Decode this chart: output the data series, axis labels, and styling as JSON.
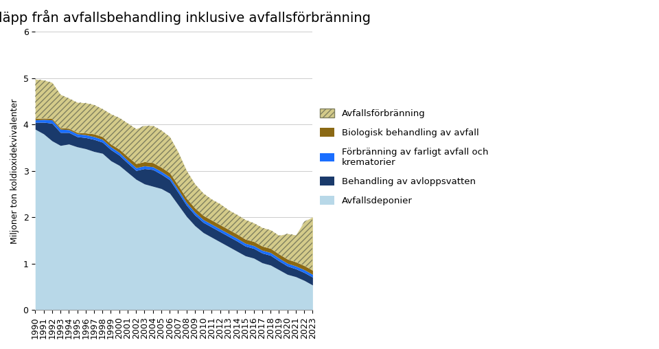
{
  "title": "Utsläpp från avfallsbehandling inklusive avfallsförbränning",
  "ylabel": "Miljoner ton koldioxidekvivalenter",
  "years": [
    1990,
    1991,
    1992,
    1993,
    1994,
    1995,
    1996,
    1997,
    1998,
    1999,
    2000,
    2001,
    2002,
    2003,
    2004,
    2005,
    2006,
    2007,
    2008,
    2009,
    2010,
    2011,
    2012,
    2013,
    2014,
    2015,
    2016,
    2017,
    2018,
    2019,
    2020,
    2021,
    2022,
    2023
  ],
  "avfallsdeponier": [
    3.9,
    3.8,
    3.65,
    3.55,
    3.58,
    3.52,
    3.48,
    3.42,
    3.38,
    3.22,
    3.12,
    2.97,
    2.82,
    2.72,
    2.67,
    2.62,
    2.52,
    2.27,
    2.02,
    1.82,
    1.67,
    1.57,
    1.47,
    1.37,
    1.27,
    1.17,
    1.12,
    1.02,
    0.97,
    0.87,
    0.77,
    0.72,
    0.64,
    0.54
  ],
  "behandling_avloppsvatten": [
    0.15,
    0.25,
    0.38,
    0.28,
    0.25,
    0.22,
    0.24,
    0.26,
    0.24,
    0.24,
    0.22,
    0.2,
    0.19,
    0.33,
    0.36,
    0.31,
    0.29,
    0.27,
    0.24,
    0.23,
    0.22,
    0.22,
    0.22,
    0.22,
    0.22,
    0.21,
    0.21,
    0.21,
    0.21,
    0.19,
    0.18,
    0.17,
    0.17,
    0.17
  ],
  "forbranning_farligt": [
    0.05,
    0.06,
    0.07,
    0.07,
    0.06,
    0.06,
    0.06,
    0.06,
    0.06,
    0.06,
    0.06,
    0.06,
    0.06,
    0.06,
    0.06,
    0.06,
    0.06,
    0.06,
    0.06,
    0.06,
    0.06,
    0.06,
    0.06,
    0.06,
    0.06,
    0.06,
    0.06,
    0.06,
    0.06,
    0.06,
    0.06,
    0.06,
    0.06,
    0.06
  ],
  "biologisk_behandling": [
    0.03,
    0.03,
    0.03,
    0.03,
    0.03,
    0.03,
    0.04,
    0.06,
    0.06,
    0.06,
    0.07,
    0.08,
    0.09,
    0.09,
    0.09,
    0.09,
    0.09,
    0.09,
    0.09,
    0.09,
    0.09,
    0.09,
    0.09,
    0.09,
    0.09,
    0.09,
    0.09,
    0.09,
    0.09,
    0.09,
    0.09,
    0.09,
    0.09,
    0.09
  ],
  "avfallsforbranning": [
    0.85,
    0.82,
    0.78,
    0.72,
    0.65,
    0.65,
    0.65,
    0.63,
    0.6,
    0.65,
    0.68,
    0.72,
    0.75,
    0.78,
    0.8,
    0.8,
    0.78,
    0.72,
    0.6,
    0.52,
    0.48,
    0.45,
    0.45,
    0.42,
    0.42,
    0.42,
    0.4,
    0.4,
    0.4,
    0.4,
    0.55,
    0.58,
    0.95,
    1.15
  ],
  "color_avfallsdeponier": "#b8d8e8",
  "color_behandling": "#1a3a6b",
  "color_forbranning": "#1a6eff",
  "color_biologisk": "#8B6914",
  "color_avfallsforbranning_fill": "#d4cb8a",
  "color_avfallsforbranning_hatch": "#808060",
  "ylim": [
    0,
    6
  ],
  "yticks": [
    0,
    1,
    2,
    3,
    4,
    5,
    6
  ],
  "background_color": "#ffffff",
  "title_fontsize": 14,
  "legend_fontsize": 9.5,
  "axis_fontsize": 9
}
